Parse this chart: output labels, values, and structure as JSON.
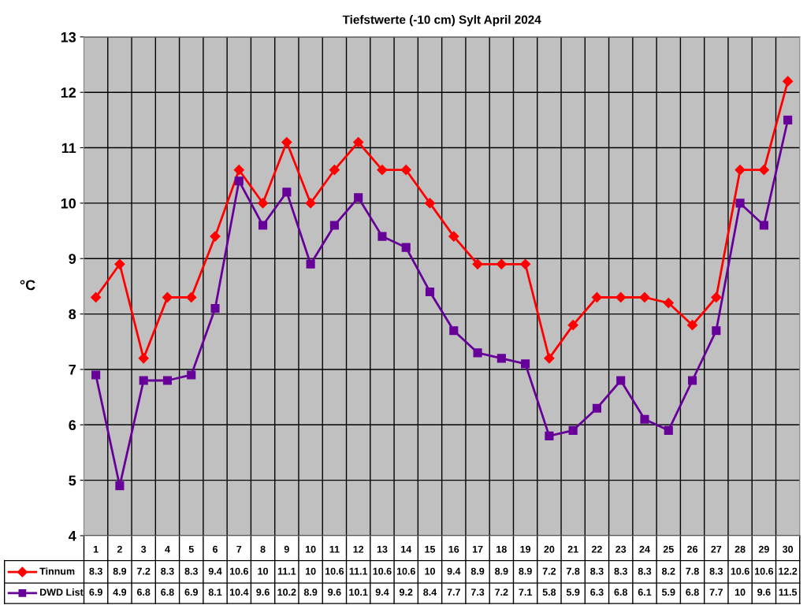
{
  "chart_data": {
    "type": "line",
    "title": "Tiefstwerte (-10 cm) Sylt April 2024",
    "ylabel": "°C",
    "categories": [
      "1",
      "2",
      "3",
      "4",
      "5",
      "6",
      "7",
      "8",
      "9",
      "10",
      "11",
      "12",
      "13",
      "14",
      "15",
      "16",
      "17",
      "18",
      "19",
      "20",
      "21",
      "22",
      "23",
      "24",
      "25",
      "26",
      "27",
      "28",
      "29",
      "30"
    ],
    "series": [
      {
        "name": "Tinnum",
        "color": "#ff0000",
        "marker": "diamond",
        "values": [
          8.3,
          8.9,
          7.2,
          8.3,
          8.3,
          9.4,
          10.6,
          10,
          11.1,
          10,
          10.6,
          11.1,
          10.6,
          10.6,
          10,
          9.4,
          8.9,
          8.9,
          8.9,
          7.2,
          7.8,
          8.3,
          8.3,
          8.3,
          8.2,
          7.8,
          8.3,
          10.6,
          10.6,
          12.2
        ]
      },
      {
        "name": "DWD List",
        "color": "#660099",
        "marker": "square",
        "values": [
          6.9,
          4.9,
          6.8,
          6.8,
          6.9,
          8.1,
          10.4,
          9.6,
          10.2,
          8.9,
          9.6,
          10.1,
          9.4,
          9.2,
          8.4,
          7.7,
          7.3,
          7.2,
          7.1,
          5.8,
          5.9,
          6.3,
          6.8,
          6.1,
          5.9,
          6.8,
          7.7,
          10,
          9.6,
          11.5
        ]
      }
    ],
    "ylim": [
      4,
      13
    ],
    "yticks": [
      4,
      5,
      6,
      7,
      8,
      9,
      10,
      11,
      12,
      13
    ],
    "grid": true,
    "legend": "bottom",
    "data_labels": true,
    "line_style": "solid"
  }
}
